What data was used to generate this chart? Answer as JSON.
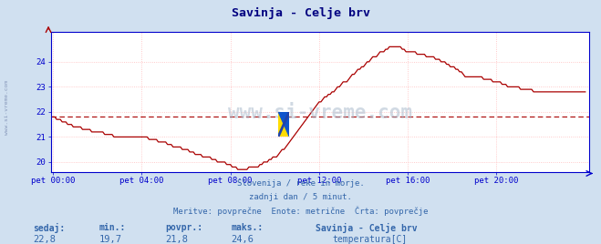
{
  "title": "Savinja - Celje brv",
  "title_color": "#000080",
  "bg_color": "#d0e0f0",
  "plot_bg_color": "#ffffff",
  "grid_color": "#ffbbbb",
  "axis_color": "#0000cc",
  "line_color": "#aa0000",
  "avg_line_color": "#aa0000",
  "avg_value": 21.8,
  "ylim": [
    19.6,
    25.2
  ],
  "yticks": [
    20,
    21,
    22,
    23,
    24
  ],
  "tick_color": "#0000aa",
  "xtick_labels": [
    "pet 00:00",
    "pet 04:00",
    "pet 08:00",
    "pet 12:00",
    "pet 16:00",
    "pet 20:00"
  ],
  "footer_lines": [
    "Slovenija / reke in morje.",
    "zadnji dan / 5 minut.",
    "Meritve: povprečne  Enote: metrične  Črta: povprečje"
  ],
  "footer_color": "#3366aa",
  "stats_labels": [
    "sedaj:",
    "min.:",
    "povpr.:",
    "maks.:"
  ],
  "stats_values": [
    "22,8",
    "19,7",
    "21,8",
    "24,6"
  ],
  "legend_title": "Savinja - Celje brv",
  "legend_label": "temperatura[C]",
  "legend_color": "#cc0000",
  "watermark": "www.si-vreme.com",
  "sidebar_text": "www.si-vreme.com",
  "sidebar_color": "#8899bb",
  "keypoints": [
    [
      0,
      21.8
    ],
    [
      6,
      21.6
    ],
    [
      12,
      21.4
    ],
    [
      18,
      21.3
    ],
    [
      24,
      21.2
    ],
    [
      30,
      21.1
    ],
    [
      36,
      21.0
    ],
    [
      42,
      21.0
    ],
    [
      48,
      21.0
    ],
    [
      54,
      20.9
    ],
    [
      60,
      20.8
    ],
    [
      66,
      20.6
    ],
    [
      72,
      20.5
    ],
    [
      78,
      20.3
    ],
    [
      84,
      20.2
    ],
    [
      90,
      20.0
    ],
    [
      96,
      19.9
    ],
    [
      100,
      19.7
    ],
    [
      106,
      19.75
    ],
    [
      110,
      19.8
    ],
    [
      114,
      19.95
    ],
    [
      118,
      20.1
    ],
    [
      122,
      20.3
    ],
    [
      126,
      20.6
    ],
    [
      130,
      21.0
    ],
    [
      134,
      21.4
    ],
    [
      138,
      21.8
    ],
    [
      142,
      22.2
    ],
    [
      144,
      22.4
    ],
    [
      148,
      22.6
    ],
    [
      152,
      22.8
    ],
    [
      156,
      23.1
    ],
    [
      160,
      23.3
    ],
    [
      164,
      23.6
    ],
    [
      168,
      23.8
    ],
    [
      172,
      24.1
    ],
    [
      176,
      24.3
    ],
    [
      180,
      24.5
    ],
    [
      184,
      24.6
    ],
    [
      188,
      24.55
    ],
    [
      192,
      24.4
    ],
    [
      196,
      24.35
    ],
    [
      200,
      24.3
    ],
    [
      204,
      24.2
    ],
    [
      208,
      24.1
    ],
    [
      212,
      23.95
    ],
    [
      216,
      23.8
    ],
    [
      220,
      23.6
    ],
    [
      224,
      23.4
    ],
    [
      228,
      23.4
    ],
    [
      232,
      23.35
    ],
    [
      236,
      23.3
    ],
    [
      240,
      23.2
    ],
    [
      244,
      23.1
    ],
    [
      248,
      23.0
    ],
    [
      252,
      22.95
    ],
    [
      256,
      22.9
    ],
    [
      260,
      22.85
    ],
    [
      264,
      22.8
    ],
    [
      268,
      22.75
    ],
    [
      272,
      22.75
    ],
    [
      276,
      22.8
    ],
    [
      280,
      22.8
    ],
    [
      284,
      22.8
    ],
    [
      288,
      22.8
    ]
  ]
}
